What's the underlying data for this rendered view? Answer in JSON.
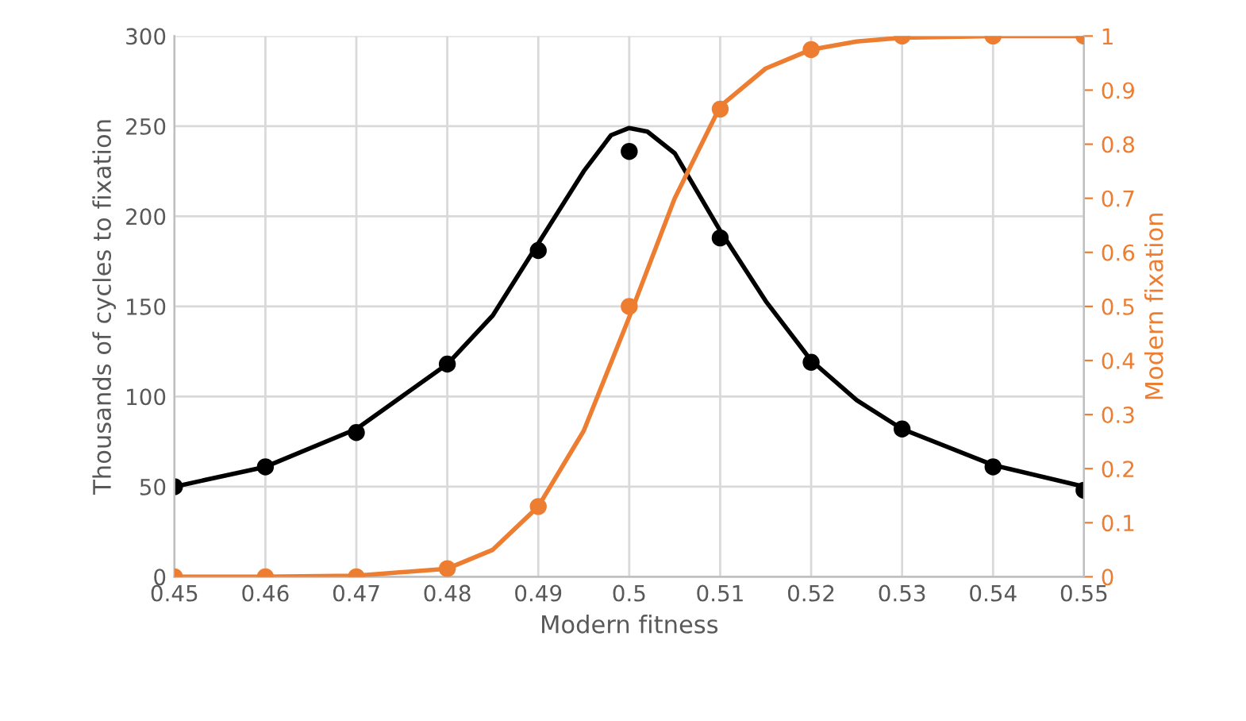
{
  "chart_data": {
    "type": "scatter",
    "xlabel": "Modern fitness",
    "ylabel": "Thousands of cycles to fixation",
    "y2label": "Modern fixation",
    "xlim": [
      0.45,
      0.55
    ],
    "xticks": [
      0.45,
      0.46,
      0.47,
      0.48,
      0.49,
      0.5,
      0.51,
      0.52,
      0.53,
      0.54,
      0.55
    ],
    "ylim": [
      0,
      300
    ],
    "yticks": [
      0,
      50,
      100,
      150,
      200,
      250,
      300
    ],
    "y2lim": [
      0,
      1
    ],
    "y2ticks": [
      0,
      0.1,
      0.2,
      0.3,
      0.4,
      0.5,
      0.6,
      0.7,
      0.8,
      0.9,
      1
    ],
    "grid": true,
    "legend": false,
    "x": [
      0.45,
      0.46,
      0.47,
      0.48,
      0.49,
      0.5,
      0.51,
      0.52,
      0.53,
      0.54,
      0.55
    ],
    "series": [
      {
        "type": "line",
        "color": "#000000",
        "marker": "none",
        "x": [
          0.45,
          0.46,
          0.47,
          0.48,
          0.485,
          0.49,
          0.495,
          0.498,
          0.5,
          0.502,
          0.505,
          0.51,
          0.515,
          0.52,
          0.525,
          0.53,
          0.54,
          0.55
        ],
        "values": [
          50,
          61,
          82,
          118,
          145,
          185,
          225,
          245,
          249,
          247,
          235,
          192,
          153,
          120,
          98,
          82,
          62,
          50
        ]
      },
      {
        "type": "line",
        "color": "#ed7d31",
        "marker": "none",
        "axis": "y2",
        "x": [
          0.45,
          0.46,
          0.47,
          0.48,
          0.485,
          0.49,
          0.495,
          0.5,
          0.505,
          0.51,
          0.515,
          0.52,
          0.525,
          0.53,
          0.54,
          0.55
        ],
        "values": [
          0,
          0,
          0.002,
          0.015,
          0.05,
          0.13,
          0.27,
          0.48,
          0.7,
          0.87,
          0.94,
          0.975,
          0.99,
          0.997,
          1,
          1
        ]
      },
      {
        "type": "scatter",
        "color": "#000000",
        "marker": "circle",
        "values": [
          50,
          61,
          80,
          118,
          181,
          236,
          188,
          119,
          82,
          61,
          48
        ]
      },
      {
        "type": "scatter",
        "color": "#ed7d31",
        "marker": "circle",
        "axis": "y2",
        "values": [
          0,
          0,
          0,
          0.015,
          0.13,
          0.5,
          0.865,
          0.975,
          1,
          1,
          1
        ]
      }
    ]
  }
}
